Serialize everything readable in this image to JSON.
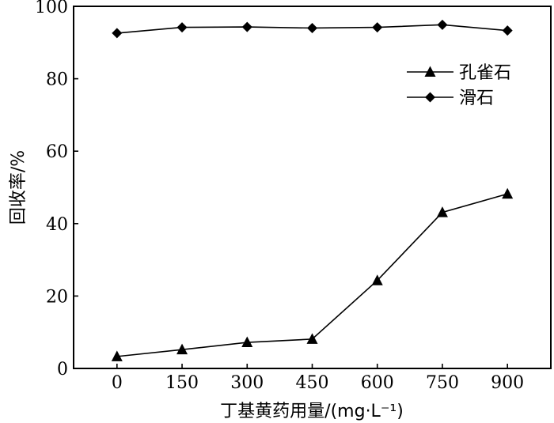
{
  "chart_data": {
    "type": "line",
    "xlabel": "丁基黄药用量/(mg·L⁻¹)",
    "ylabel": "回收率/%",
    "categories": [
      "0",
      "150",
      "300",
      "450",
      "600",
      "750",
      "900"
    ],
    "x": [
      0,
      150,
      300,
      450,
      600,
      750,
      900
    ],
    "xlim": [
      -100,
      1000
    ],
    "ylim": [
      0,
      100
    ],
    "yticks": [
      "0",
      "20",
      "40",
      "60",
      "80",
      "100"
    ],
    "series": [
      {
        "name": "孔雀石",
        "marker": "triangle",
        "values": [
          3.3,
          5.2,
          7.2,
          8.1,
          24.3,
          43.1,
          48.2
        ]
      },
      {
        "name": "滑石",
        "marker": "diamond",
        "values": [
          92.6,
          94.2,
          94.3,
          94.0,
          94.2,
          94.9,
          93.3
        ]
      }
    ],
    "legend_position": "top-right",
    "grid": false,
    "color": "#000000"
  }
}
